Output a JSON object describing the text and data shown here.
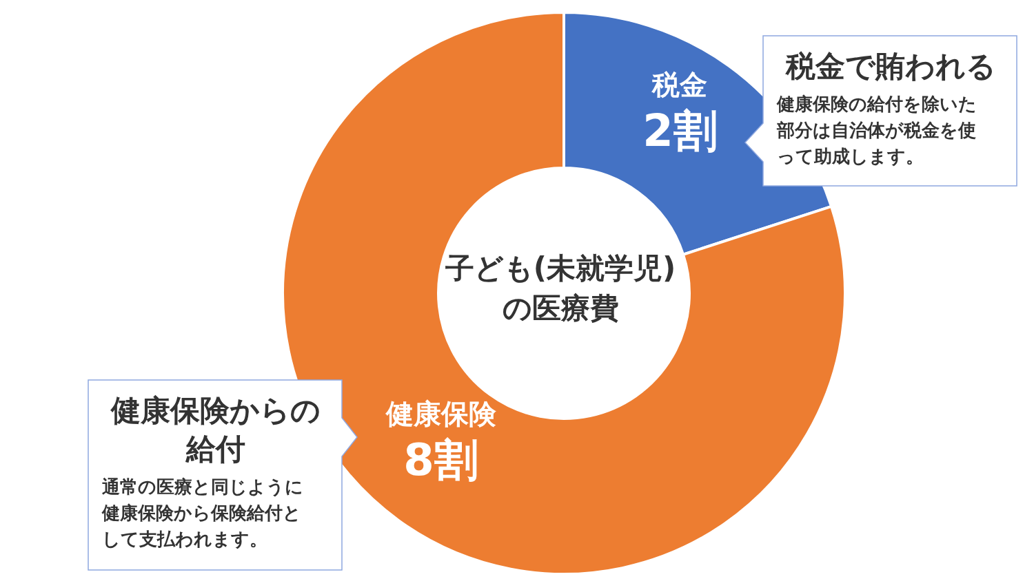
{
  "chart_data": {
    "type": "donut",
    "title": "子ども(未就学児)\nの医療費",
    "categories": [
      "税金",
      "健康保険"
    ],
    "values": [
      2,
      8
    ],
    "value_labels": [
      "2割",
      "8割"
    ],
    "colors": [
      "#4472c4",
      "#ed7d31"
    ],
    "legend": false,
    "annotations": [
      "税金で賄われる",
      "健康保険の給付を除いた部分は自治体が税金を使って助成します。",
      "健康保険からの給付",
      "通常の医療と同じように健康保険から保険給付として支払われます。"
    ]
  }
}
